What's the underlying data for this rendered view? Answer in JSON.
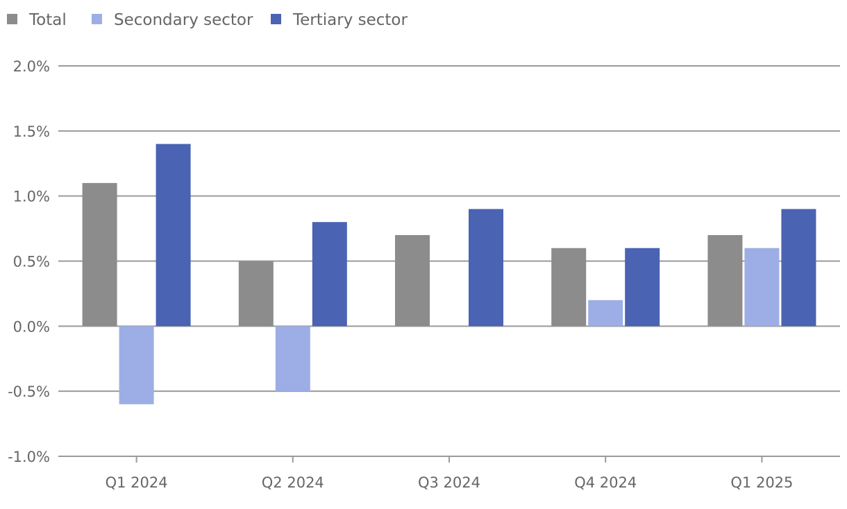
{
  "chart_data": {
    "type": "bar",
    "categories": [
      "Q1 2024",
      "Q2 2024",
      "Q3 2024",
      "Q4 2024",
      "Q1 2025"
    ],
    "series": [
      {
        "name": "Total",
        "color": "#8c8c8c",
        "values": [
          1.1,
          0.5,
          0.7,
          0.6,
          0.7
        ]
      },
      {
        "name": "Secondary sector",
        "color": "#9daee6",
        "values": [
          -0.6,
          -0.5,
          null,
          0.2,
          0.6
        ]
      },
      {
        "name": "Tertiary sector",
        "color": "#4a63b3",
        "values": [
          1.4,
          0.8,
          0.9,
          0.6,
          0.9
        ]
      }
    ],
    "yticks": [
      2.0,
      1.5,
      1.0,
      0.5,
      0.0,
      -0.5,
      -1.0
    ],
    "ytick_labels": [
      "2.0%",
      "1.5%",
      "1.0%",
      "0.5%",
      "0.0%",
      "-0.5%",
      "-1.0%"
    ],
    "ylim": [
      -1.0,
      2.0
    ],
    "grid": true,
    "legend_position": "top-left",
    "title": "",
    "xlabel": "",
    "ylabel": ""
  }
}
